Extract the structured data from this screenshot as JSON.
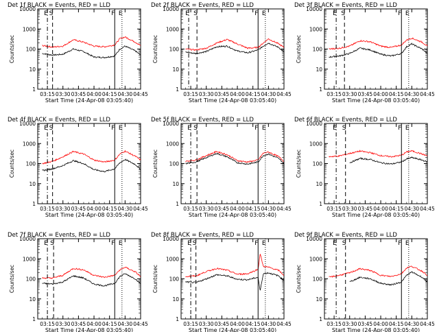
{
  "page": {
    "background": "#ffffff"
  },
  "colors": {
    "events": "#000000",
    "lld": "#ff0000",
    "axis": "#000000"
  },
  "markers": {
    "e": "E",
    "s": "S",
    "f": "F"
  },
  "xlabel": "Start Time (24-Apr-08 03:05:40)",
  "ylabel": "Counts/sec",
  "x_ticks": [
    "03:15",
    "03:30",
    "03:45",
    "04:00",
    "04:15",
    "04:30",
    "04:45"
  ],
  "y_ticks": [
    "1",
    "10",
    "100",
    "1000",
    "10000"
  ],
  "chart_data": [
    {
      "type": "line",
      "title": "Det 1f BLACK = Events, RED = LLD",
      "xlabel": "Start Time (24-Apr-08 03:05:40)",
      "ylabel": "Counts/sec",
      "yscale": "log",
      "ylim": [
        1,
        10000
      ],
      "xlim": [
        "03:05:40",
        "04:45"
      ],
      "x": [
        "03:10",
        "03:20",
        "03:30",
        "03:40",
        "03:50",
        "04:00",
        "04:10",
        "04:20",
        "04:25",
        "04:30",
        "04:40",
        "04:45"
      ],
      "series": [
        {
          "name": "Events",
          "color": "#000000",
          "values": [
            60,
            50,
            55,
            100,
            75,
            40,
            38,
            45,
            100,
            140,
            80,
            50
          ]
        },
        {
          "name": "LLD",
          "color": "#ff0000",
          "values": [
            150,
            125,
            140,
            290,
            220,
            140,
            130,
            160,
            330,
            400,
            220,
            150
          ]
        }
      ],
      "vlines": [
        {
          "label": "E",
          "x": "03:15",
          "style": "dash-dot"
        },
        {
          "label": "S",
          "x": "03:20",
          "style": "dashed"
        },
        {
          "label": "F",
          "x": "04:20",
          "style": "solid"
        },
        {
          "label": "E",
          "x": "04:27",
          "style": "dotted"
        }
      ]
    },
    {
      "type": "line",
      "title": "Det 2f BLACK = Events, RED = LLD",
      "xlabel": "Start Time (24-Apr-08 03:05:40)",
      "ylabel": "Counts/sec",
      "yscale": "log",
      "ylim": [
        1,
        10000
      ],
      "xlim": [
        "03:05:40",
        "04:45"
      ],
      "x": [
        "03:10",
        "03:20",
        "03:30",
        "03:40",
        "03:50",
        "04:00",
        "04:10",
        "04:20",
        "04:25",
        "04:30",
        "04:40",
        "04:45"
      ],
      "series": [
        {
          "name": "Events",
          "color": "#000000",
          "values": [
            70,
            60,
            75,
            130,
            140,
            80,
            65,
            90,
            140,
            200,
            120,
            70
          ]
        },
        {
          "name": "LLD",
          "color": "#ff0000",
          "values": [
            100,
            90,
            110,
            200,
            300,
            180,
            110,
            120,
            200,
            320,
            180,
            120
          ]
        }
      ],
      "vlines": [
        {
          "label": "E",
          "x": "03:13",
          "style": "dash-dot"
        },
        {
          "label": "S",
          "x": "03:21",
          "style": "dashed"
        },
        {
          "label": "F",
          "x": "04:20",
          "style": "solid"
        },
        {
          "label": "E",
          "x": "04:27",
          "style": "dotted"
        }
      ]
    },
    {
      "type": "line",
      "title": "Det 3f BLACK = Events, RED = LLD",
      "xlabel": "Start Time (24-Apr-08 03:05:40)",
      "ylabel": "Counts/sec",
      "yscale": "log",
      "ylim": [
        1,
        10000
      ],
      "xlim": [
        "03:05:40",
        "04:45"
      ],
      "x": [
        "03:10",
        "03:20",
        "03:30",
        "03:40",
        "03:50",
        "04:00",
        "04:10",
        "04:20",
        "04:25",
        "04:30",
        "04:40",
        "04:45"
      ],
      "series": [
        {
          "name": "Events",
          "color": "#000000",
          "values": [
            40,
            45,
            60,
            110,
            90,
            55,
            45,
            60,
            130,
            180,
            100,
            60
          ]
        },
        {
          "name": "LLD",
          "color": "#ff0000",
          "values": [
            100,
            110,
            140,
            260,
            230,
            140,
            120,
            160,
            280,
            350,
            220,
            140
          ]
        }
      ],
      "vlines": [
        {
          "label": "E",
          "x": "03:17",
          "style": "dash-dot"
        },
        {
          "label": "S",
          "x": "03:25",
          "style": "dashed"
        },
        {
          "label": "F",
          "x": "04:20",
          "style": "solid"
        },
        {
          "label": "E",
          "x": "04:27",
          "style": "dotted"
        }
      ]
    },
    {
      "type": "line",
      "title": "Det 4f BLACK = Events, RED = LLD",
      "xlabel": "Start Time (24-Apr-08 03:05:40)",
      "ylabel": "Counts/sec",
      "yscale": "log",
      "ylim": [
        1,
        10000
      ],
      "xlim": [
        "03:05:40",
        "04:45"
      ],
      "x": [
        "03:10",
        "03:20",
        "03:30",
        "03:40",
        "03:50",
        "04:00",
        "04:10",
        "04:20",
        "04:25",
        "04:30",
        "04:40",
        "04:45"
      ],
      "series": [
        {
          "name": "Events",
          "color": "#000000",
          "values": [
            45,
            55,
            80,
            140,
            100,
            50,
            40,
            55,
            110,
            160,
            90,
            50
          ]
        },
        {
          "name": "LLD",
          "color": "#ff0000",
          "values": [
            100,
            130,
            220,
            400,
            300,
            150,
            120,
            150,
            300,
            420,
            230,
            150
          ]
        }
      ],
      "vlines": [
        {
          "label": "E",
          "x": "03:15",
          "style": "dash-dot"
        },
        {
          "label": "S",
          "x": "03:20",
          "style": "dashed"
        },
        {
          "label": "F",
          "x": "04:20",
          "style": "solid"
        },
        {
          "label": "E",
          "x": "04:27",
          "style": "dotted"
        }
      ]
    },
    {
      "type": "line",
      "title": "Det 5f BLACK = Events, RED = LLD",
      "xlabel": "Start Time (24-Apr-08 03:05:40)",
      "ylabel": "Counts/sec",
      "yscale": "log",
      "ylim": [
        1,
        10000
      ],
      "xlim": [
        "03:05:40",
        "04:45"
      ],
      "x": [
        "03:10",
        "03:20",
        "03:30",
        "03:40",
        "03:50",
        "04:00",
        "04:10",
        "04:20",
        "04:25",
        "04:30",
        "04:40",
        "04:45"
      ],
      "series": [
        {
          "name": "Events",
          "color": "#000000",
          "values": [
            100,
            120,
            200,
            320,
            220,
            110,
            95,
            120,
            250,
            300,
            180,
            100
          ]
        },
        {
          "name": "LLD",
          "color": "#ff0000",
          "values": [
            130,
            150,
            250,
            400,
            280,
            140,
            120,
            150,
            330,
            380,
            220,
            130
          ]
        }
      ],
      "vlines": [
        {
          "label": "E",
          "x": "03:15",
          "style": "dash-dot"
        },
        {
          "label": "S",
          "x": "03:21",
          "style": "dashed"
        },
        {
          "label": "F",
          "x": "04:20",
          "style": "solid"
        },
        {
          "label": "E",
          "x": "04:27",
          "style": "dotted"
        }
      ]
    },
    {
      "type": "line",
      "title": "Det 6f BLACK = Events, RED = LLD",
      "xlabel": "Start Time (24-Apr-08 03:05:40)",
      "ylabel": "Counts/sec",
      "yscale": "log",
      "ylim": [
        1,
        10000
      ],
      "xlim": [
        "03:05:40",
        "04:45"
      ],
      "x": [
        "03:10",
        "03:20",
        "03:30",
        "03:40",
        "03:50",
        "04:00",
        "04:10",
        "04:20",
        "04:25",
        "04:30",
        "04:40",
        "04:45"
      ],
      "series": [
        {
          "name": "Events",
          "color": "#000000",
          "values": [
            null,
            null,
            110,
            180,
            160,
            110,
            95,
            120,
            170,
            200,
            150,
            120
          ]
        },
        {
          "name": "LLD",
          "color": "#ff0000",
          "values": [
            220,
            240,
            320,
            420,
            350,
            250,
            220,
            260,
            380,
            430,
            300,
            240
          ]
        }
      ],
      "vlines": [
        {
          "label": "E",
          "x": "03:17",
          "style": "dash-dot"
        },
        {
          "label": "S",
          "x": "03:26",
          "style": "dashed"
        },
        {
          "label": "F",
          "x": "04:20",
          "style": "solid"
        },
        {
          "label": "E",
          "x": "04:27",
          "style": "dotted"
        }
      ]
    },
    {
      "type": "line",
      "title": "Det 7f BLACK = Events, RED = LLD",
      "xlabel": "Start Time (24-Apr-08 03:05:40)",
      "ylabel": "Counts/sec",
      "yscale": "log",
      "ylim": [
        1,
        10000
      ],
      "xlim": [
        "03:05:40",
        "04:45"
      ],
      "x": [
        "03:10",
        "03:20",
        "03:30",
        "03:40",
        "03:50",
        "04:00",
        "04:10",
        "04:20",
        "04:25",
        "04:30",
        "04:40",
        "04:45"
      ],
      "series": [
        {
          "name": "Events",
          "color": "#000000",
          "values": [
            60,
            55,
            70,
            140,
            110,
            55,
            45,
            60,
            130,
            180,
            100,
            55
          ]
        },
        {
          "name": "LLD",
          "color": "#ff0000",
          "values": [
            110,
            110,
            150,
            330,
            280,
            150,
            120,
            150,
            280,
            380,
            220,
            130
          ]
        }
      ],
      "vlines": [
        {
          "label": "E",
          "x": "03:15",
          "style": "dash-dot"
        },
        {
          "label": "S",
          "x": "03:21",
          "style": "dashed"
        },
        {
          "label": "F",
          "x": "04:20",
          "style": "solid"
        },
        {
          "label": "E",
          "x": "04:27",
          "style": "dotted"
        }
      ]
    },
    {
      "type": "line",
      "title": "Det 8f BLACK = Events, RED = LLD",
      "xlabel": "Start Time (24-Apr-08 03:05:40)",
      "ylabel": "Counts/sec",
      "yscale": "log",
      "ylim": [
        1,
        10000
      ],
      "xlim": [
        "03:05:40",
        "04:45"
      ],
      "x": [
        "03:10",
        "03:20",
        "03:30",
        "03:40",
        "03:50",
        "04:00",
        "04:10",
        "04:20",
        "04:22",
        "04:25",
        "04:30",
        "04:40",
        "04:45"
      ],
      "series": [
        {
          "name": "Events",
          "color": "#000000",
          "values": [
            70,
            65,
            100,
            160,
            140,
            95,
            90,
            120,
            25,
            180,
            200,
            140,
            80
          ]
        },
        {
          "name": "LLD",
          "color": "#ff0000",
          "values": [
            130,
            140,
            230,
            330,
            270,
            170,
            180,
            300,
            1800,
            420,
            380,
            260,
            150
          ]
        }
      ],
      "vlines": [
        {
          "label": "E",
          "x": "03:15",
          "style": "dash-dot"
        },
        {
          "label": "S",
          "x": "03:20",
          "style": "dashed"
        },
        {
          "label": "F",
          "x": "04:20",
          "style": "solid"
        },
        {
          "label": "E",
          "x": "04:27",
          "style": "dotted"
        }
      ]
    },
    {
      "type": "line",
      "title": "Det 9f BLACK = Events, RED = LLD",
      "xlabel": "Start Time (24-Apr-08 03:05:40)",
      "ylabel": "Counts/sec",
      "yscale": "log",
      "ylim": [
        1,
        10000
      ],
      "xlim": [
        "03:05:40",
        "04:45"
      ],
      "x": [
        "03:10",
        "03:20",
        "03:30",
        "03:40",
        "03:50",
        "04:00",
        "04:10",
        "04:20",
        "04:25",
        "04:30",
        "04:40",
        "04:45"
      ],
      "series": [
        {
          "name": "Events",
          "color": "#000000",
          "values": [
            null,
            null,
            70,
            120,
            100,
            60,
            50,
            70,
            150,
            220,
            120,
            70
          ]
        },
        {
          "name": "LLD",
          "color": "#ff0000",
          "values": [
            120,
            150,
            200,
            320,
            260,
            150,
            130,
            180,
            350,
            420,
            240,
            150
          ]
        }
      ],
      "vlines": [
        {
          "label": "E",
          "x": "03:17",
          "style": "dash-dot"
        },
        {
          "label": "S",
          "x": "03:26",
          "style": "dashed"
        },
        {
          "label": "F",
          "x": "04:20",
          "style": "solid"
        },
        {
          "label": "E",
          "x": "04:27",
          "style": "dotted"
        }
      ]
    }
  ]
}
